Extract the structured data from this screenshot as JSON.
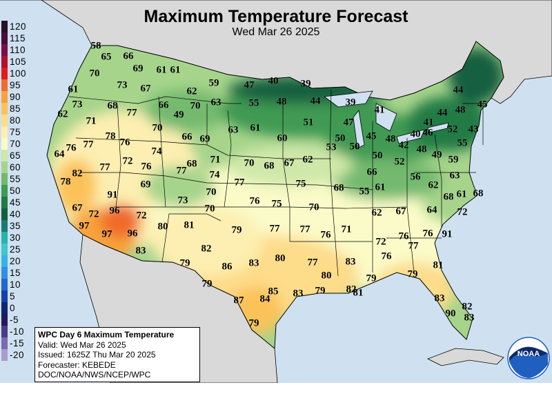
{
  "header": {
    "title": "Maximum Temperature Forecast",
    "date": "Wed Mar 26 2025"
  },
  "colors": {
    "ocean": "#cfe1f1",
    "foreign_land": "#d9d9d9",
    "brand_blue": "#1f5fbf"
  },
  "legend": [
    {
      "label": "120",
      "color": "#2a0f26"
    },
    {
      "label": "115",
      "color": "#470f3a"
    },
    {
      "label": "110",
      "color": "#77104a"
    },
    {
      "label": "105",
      "color": "#b0102a"
    },
    {
      "label": "100",
      "color": "#e21b1b"
    },
    {
      "label": "95",
      "color": "#f06a2b"
    },
    {
      "label": "90",
      "color": "#f7a33a"
    },
    {
      "label": "85",
      "color": "#fbc25a"
    },
    {
      "label": "80",
      "color": "#fddc8a"
    },
    {
      "label": "75",
      "color": "#fdefb1"
    },
    {
      "label": "70",
      "color": "#fafbc8"
    },
    {
      "label": "65",
      "color": "#cfe8a9"
    },
    {
      "label": "60",
      "color": "#a6d48b"
    },
    {
      "label": "55",
      "color": "#73b96e"
    },
    {
      "label": "50",
      "color": "#3f9a52"
    },
    {
      "label": "45",
      "color": "#227a44"
    },
    {
      "label": "40",
      "color": "#165e40"
    },
    {
      "label": "35",
      "color": "#1b7a72"
    },
    {
      "label": "30",
      "color": "#2ab3a9"
    },
    {
      "label": "25",
      "color": "#3fc6cf"
    },
    {
      "label": "20",
      "color": "#37b2e8"
    },
    {
      "label": "15",
      "color": "#2f8fe8"
    },
    {
      "label": "10",
      "color": "#2166d1"
    },
    {
      "label": "5",
      "color": "#153fa8"
    },
    {
      "label": "0",
      "color": "#0c2575"
    },
    {
      "label": "-5",
      "color": "#211a5c"
    },
    {
      "label": "-10",
      "color": "#4a3b86"
    },
    {
      "label": "-15",
      "color": "#7a6ab0"
    },
    {
      "label": "-20",
      "color": "#a79dcc"
    }
  ],
  "temps": [
    "58",
    "65",
    "66",
    "70",
    "69",
    "61",
    "61",
    "61",
    "73",
    "67",
    "62",
    "59",
    "47",
    "40",
    "39",
    "73",
    "68",
    "77",
    "66",
    "49",
    "70",
    "63",
    "55",
    "48",
    "44",
    "39",
    "62",
    "71",
    "70",
    "51",
    "47",
    "41",
    "64",
    "76",
    "77",
    "78",
    "76",
    "74",
    "66",
    "69",
    "63",
    "61",
    "60",
    "53",
    "50",
    "45",
    "48",
    "42",
    "40",
    "41",
    "46",
    "52",
    "43",
    "44",
    "48",
    "45",
    "44",
    "55",
    "82",
    "77",
    "72",
    "76",
    "77",
    "68",
    "71",
    "70",
    "68",
    "67",
    "62",
    "50",
    "50",
    "52",
    "48",
    "49",
    "59",
    "78",
    "91",
    "69",
    "74",
    "77",
    "75",
    "68",
    "66",
    "55",
    "61",
    "56",
    "62",
    "63",
    "67",
    "96",
    "73",
    "70",
    "76",
    "75",
    "70",
    "62",
    "67",
    "64",
    "68",
    "61",
    "68",
    "97",
    "72",
    "72",
    "70",
    "72",
    "97",
    "96",
    "80",
    "81",
    "79",
    "77",
    "77",
    "76",
    "71",
    "72",
    "76",
    "77",
    "76",
    "91",
    "83",
    "82",
    "86",
    "83",
    "80",
    "77",
    "76",
    "83",
    "79",
    "80",
    "79",
    "79",
    "81",
    "79",
    "87",
    "84",
    "85",
    "83",
    "79",
    "82",
    "81",
    "83",
    "82",
    "90",
    "83",
    "79"
  ],
  "info_box": {
    "title": "WPC Day 6 Maximum Temperature",
    "valid": "Valid: Wed Mar 26 2025",
    "issued": "Issued: 1625Z Thu Mar 20 2025",
    "forecaster": "Forecaster: KEBEDE",
    "agency": "DOC/NOAA/NWS/NCEP/WPC"
  },
  "logo": {
    "text": "NOAA"
  }
}
